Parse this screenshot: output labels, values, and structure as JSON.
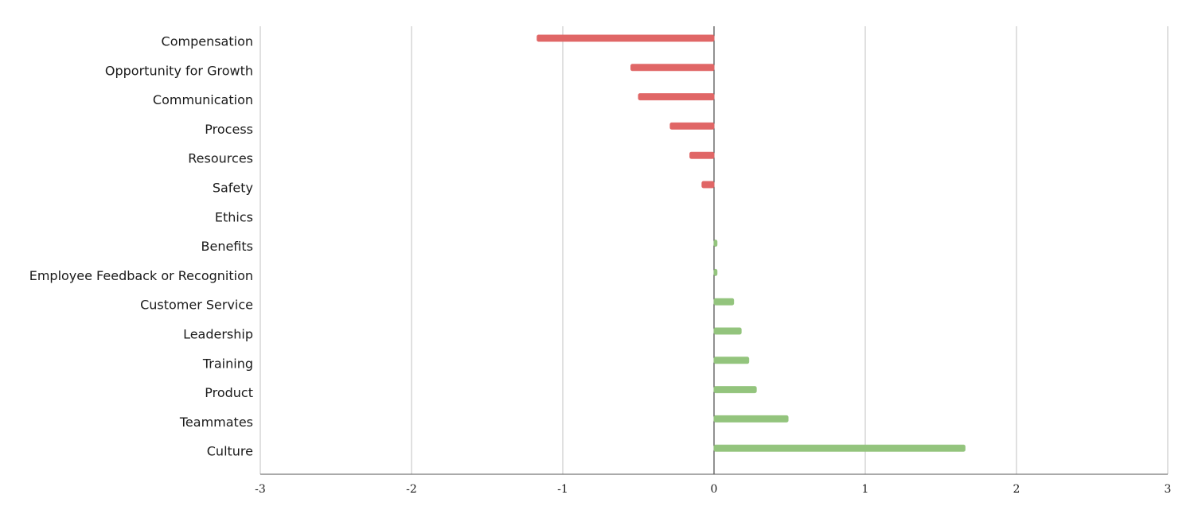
{
  "chart_data": {
    "type": "bar",
    "orientation": "horizontal",
    "categories": [
      "Compensation",
      "Opportunity for Growth",
      "Communication",
      "Process",
      "Resources",
      "Safety",
      "Ethics",
      "Benefits",
      "Employee Feedback or Recognition",
      "Customer Service",
      "Leadership",
      "Training",
      "Product",
      "Teammates",
      "Culture"
    ],
    "values": [
      -1.17,
      -0.55,
      -0.5,
      -0.29,
      -0.16,
      -0.08,
      0,
      0.02,
      0.02,
      0.13,
      0.18,
      0.23,
      0.28,
      0.49,
      1.66
    ],
    "xlim": [
      -3,
      3
    ],
    "xticks": [
      -3,
      -2,
      -1,
      0,
      1,
      2,
      3
    ],
    "grid": true,
    "title": "",
    "xlabel": "",
    "ylabel": "",
    "colors": {
      "negative": "#e06666",
      "positive": "#93c47d",
      "grid": "#c0c0c0",
      "axis": "#555555",
      "zero_line": "#222222"
    }
  }
}
